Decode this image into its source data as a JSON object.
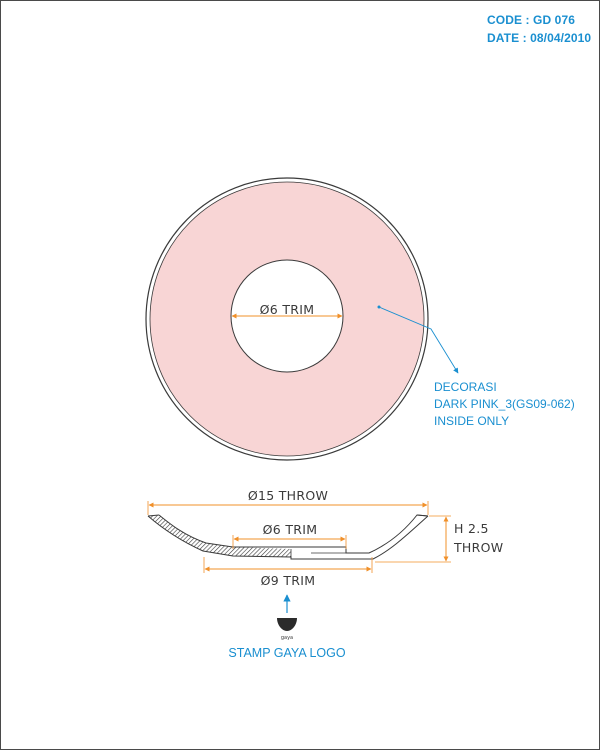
{
  "header": {
    "code": "CODE : GD 076",
    "date": "DATE : 08/04/2010"
  },
  "top_view": {
    "inner_dimension": "Ø6 TRIM",
    "decoration_note": [
      "DECORASI",
      "DARK PINK_3(GS09-062)",
      "INSIDE ONLY"
    ],
    "decoration_color": "#f8d5d5"
  },
  "side_view": {
    "outer_dimension": "Ø15 THROW",
    "inner_dimension": "Ø6 TRIM",
    "base_dimension": "Ø9 TRIM",
    "height_dimension": [
      "H 2.5",
      "THROW"
    ]
  },
  "stamp": {
    "logo_text": "gaya",
    "label": "STAMP GAYA LOGO"
  },
  "colors": {
    "dimension": "#f0902a",
    "note": "#1a8fd0",
    "outline": "#3a3a3a"
  }
}
